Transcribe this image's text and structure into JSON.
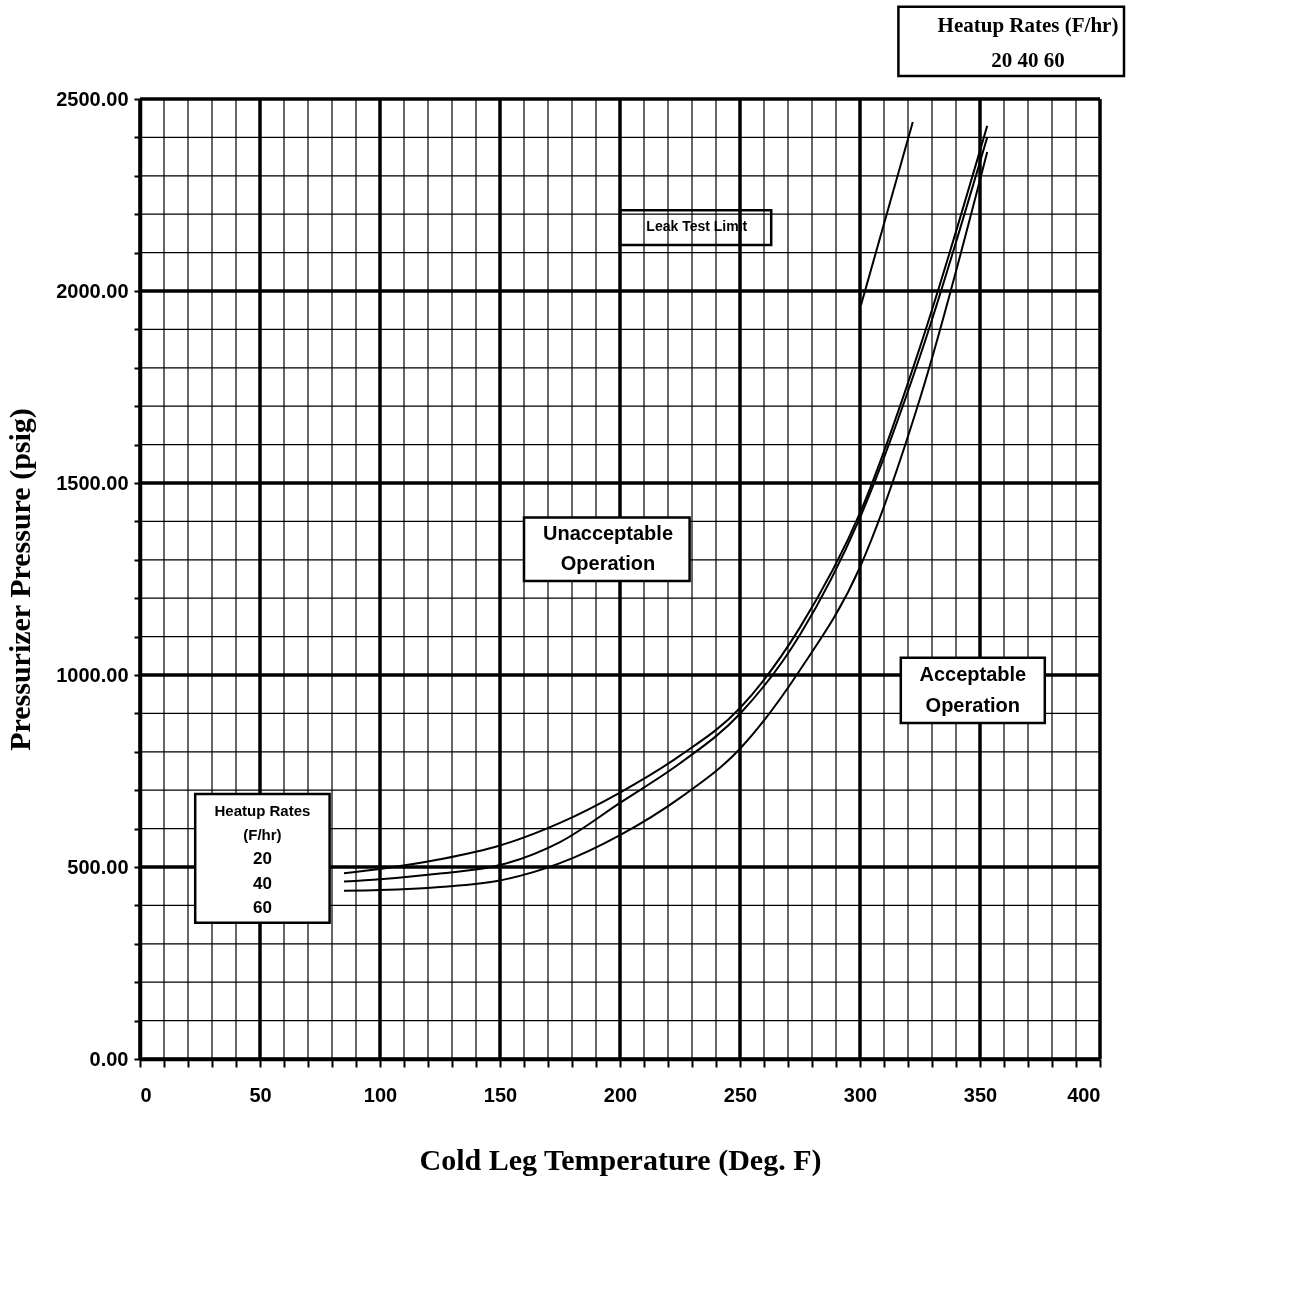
{
  "chart_data": {
    "type": "line",
    "xlabel": "Cold Leg Temperature (Deg. F)",
    "ylabel": "Pressurizer Pressure (psig)",
    "xlim": [
      0,
      400
    ],
    "ylim": [
      0,
      2500
    ],
    "xticks": [
      0,
      {
        "value": 10,
        "label": null
      },
      {
        "value": 20,
        "label": null
      },
      {
        "value": 30,
        "label": null
      },
      {
        "value": 40,
        "label": null
      },
      50,
      {
        "value": 60,
        "label": null
      },
      {
        "value": 70,
        "label": null
      },
      {
        "value": 80,
        "label": null
      },
      {
        "value": 90,
        "label": null
      },
      100,
      {
        "value": 110,
        "label": null
      },
      {
        "value": 120,
        "label": null
      },
      {
        "value": 130,
        "label": null
      },
      {
        "value": 140,
        "label": null
      },
      150,
      {
        "value": 160,
        "label": null
      },
      {
        "value": 170,
        "label": null
      },
      {
        "value": 180,
        "label": null
      },
      {
        "value": 190,
        "label": null
      },
      200,
      {
        "value": 210,
        "label": null
      },
      {
        "value": 220,
        "label": null
      },
      {
        "value": 230,
        "label": null
      },
      {
        "value": 240,
        "label": null
      },
      250,
      {
        "value": 260,
        "label": null
      },
      {
        "value": 270,
        "label": null
      },
      {
        "value": 280,
        "label": null
      },
      {
        "value": 290,
        "label": null
      },
      300,
      {
        "value": 310,
        "label": null
      },
      {
        "value": 320,
        "label": null
      },
      {
        "value": 330,
        "label": null
      },
      {
        "value": 340,
        "label": null
      },
      350,
      {
        "value": 360,
        "label": null
      },
      {
        "value": 370,
        "label": null
      },
      {
        "value": 380,
        "label": null
      },
      {
        "value": 390,
        "label": null
      },
      400
    ],
    "yticks": [
      {
        "value": 0,
        "label": "0.00"
      },
      {
        "value": 100,
        "label": null
      },
      {
        "value": 200,
        "label": null
      },
      {
        "value": 300,
        "label": null
      },
      {
        "value": 400,
        "label": null
      },
      {
        "value": 500,
        "label": "500.00"
      },
      {
        "value": 600,
        "label": null
      },
      {
        "value": 700,
        "label": null
      },
      {
        "value": 800,
        "label": null
      },
      {
        "value": 900,
        "label": null
      },
      {
        "value": 1000,
        "label": "1000.00"
      },
      {
        "value": 1100,
        "label": null
      },
      {
        "value": 1200,
        "label": null
      },
      {
        "value": 1300,
        "label": null
      },
      {
        "value": 1400,
        "label": null
      },
      {
        "value": 1500,
        "label": "1500.00"
      },
      {
        "value": 1600,
        "label": null
      },
      {
        "value": 1700,
        "label": null
      },
      {
        "value": 1800,
        "label": null
      },
      {
        "value": 1900,
        "label": null
      },
      {
        "value": 2000,
        "label": "2000.00"
      },
      {
        "value": 2100,
        "label": null
      },
      {
        "value": 2200,
        "label": null
      },
      {
        "value": 2300,
        "label": null
      },
      {
        "value": 2400,
        "label": null
      },
      {
        "value": 2500,
        "label": "2500.00"
      }
    ],
    "grid": true,
    "line_style": "solid",
    "series": [
      {
        "color": "#000000",
        "x": [
          85,
          100,
          125,
          150,
          175,
          200,
          225,
          250,
          275,
          300,
          325,
          353
        ],
        "values": [
          484,
          495,
          520,
          556,
          615,
          694,
          790,
          914,
          1124,
          1422,
          1854,
          2430
        ]
      },
      {
        "color": "#000000",
        "x": [
          85,
          100,
          125,
          150,
          175,
          200,
          225,
          250,
          275,
          300,
          325,
          353
        ],
        "values": [
          462,
          468,
          483,
          505,
          565,
          667,
          770,
          899,
          1105,
          1410,
          1830,
          2400
        ]
      },
      {
        "color": "#000000",
        "x": [
          85,
          100,
          125,
          150,
          175,
          200,
          225,
          250,
          275,
          300,
          325,
          353
        ],
        "values": [
          438,
          440,
          448,
          465,
          510,
          583,
          680,
          808,
          1013,
          1281,
          1720,
          2362
        ]
      },
      {
        "color": "#000000",
        "x": [
          300.4,
          322
        ],
        "values": [
          1963,
          2440
        ]
      }
    ],
    "annotations": [
      "Heatup Rates (F/hr)",
      "20    40    60",
      "Heatup Rates",
      "(F/hr)",
      "20",
      "40",
      "60",
      "Leak Test Limit",
      "Unacceptable",
      "Operation",
      "Acceptable",
      "Operation"
    ]
  }
}
